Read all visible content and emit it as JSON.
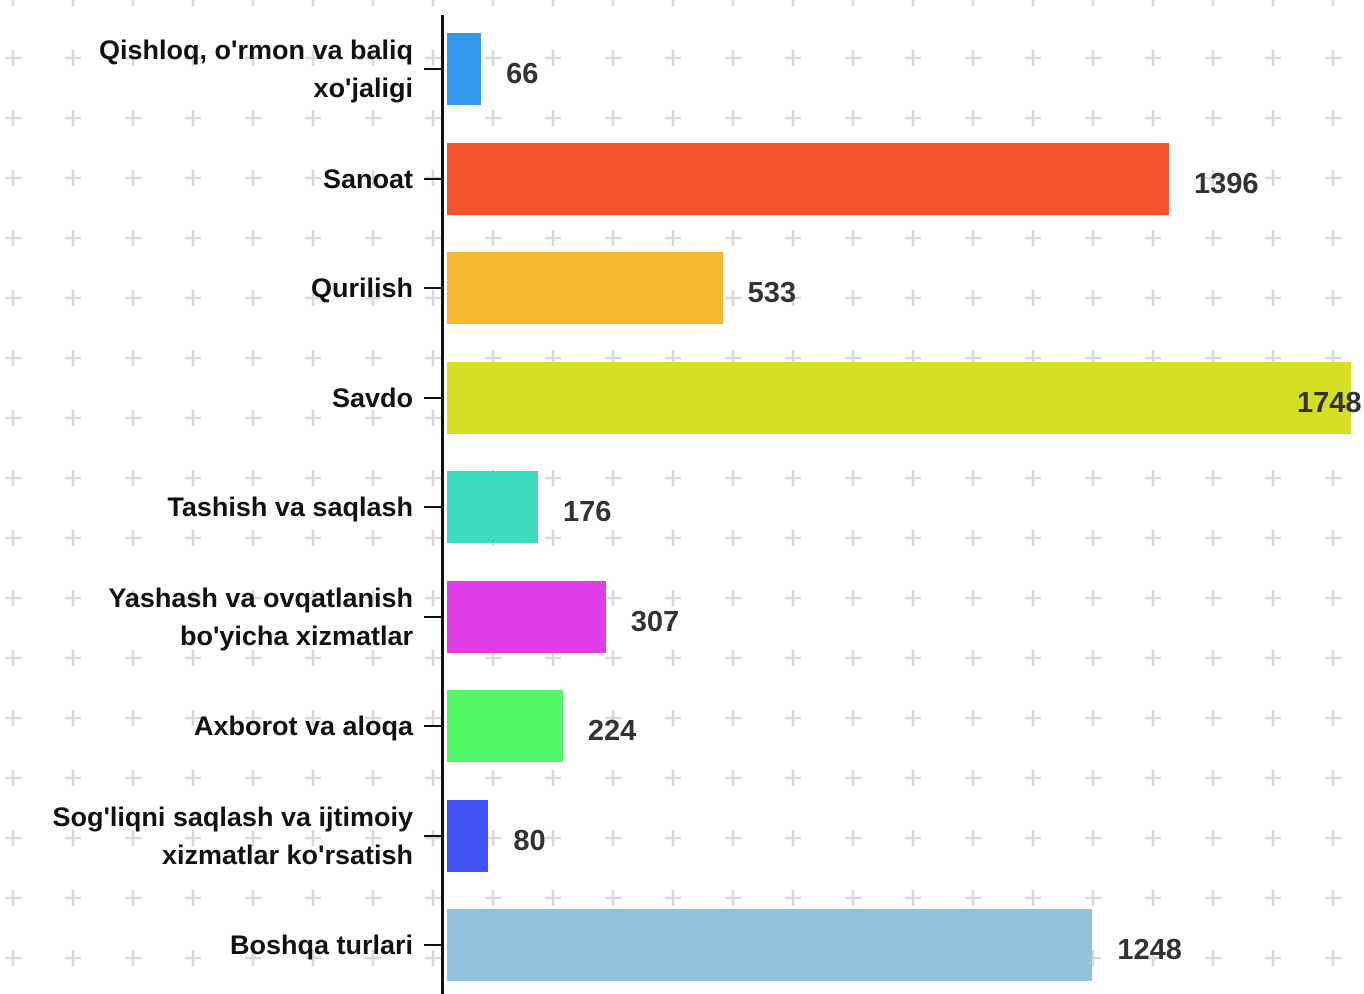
{
  "chart_data": {
    "type": "bar",
    "orientation": "horizontal",
    "categories": [
      "Qishloq, o'rmon va baliq xo'jaligi",
      "Sanoat",
      "Qurilish",
      "Savdo",
      "Tashish va saqlash",
      "Yashash va ovqatlanish bo'yicha xizmatlar",
      "Axborot va aloqa",
      "Sog'liqni saqlash va ijtimoiy xizmatlar ko'rsatish",
      "Boshqa turlari"
    ],
    "values": [
      66,
      1396,
      533,
      1748,
      176,
      307,
      224,
      80,
      1248
    ],
    "colors": [
      "#3399ee",
      "#f4512c",
      "#f5b82e",
      "#d6e022",
      "#3ddbc1",
      "#e03ce8",
      "#52f565",
      "#3f51f5",
      "#94c1dc"
    ]
  }
}
